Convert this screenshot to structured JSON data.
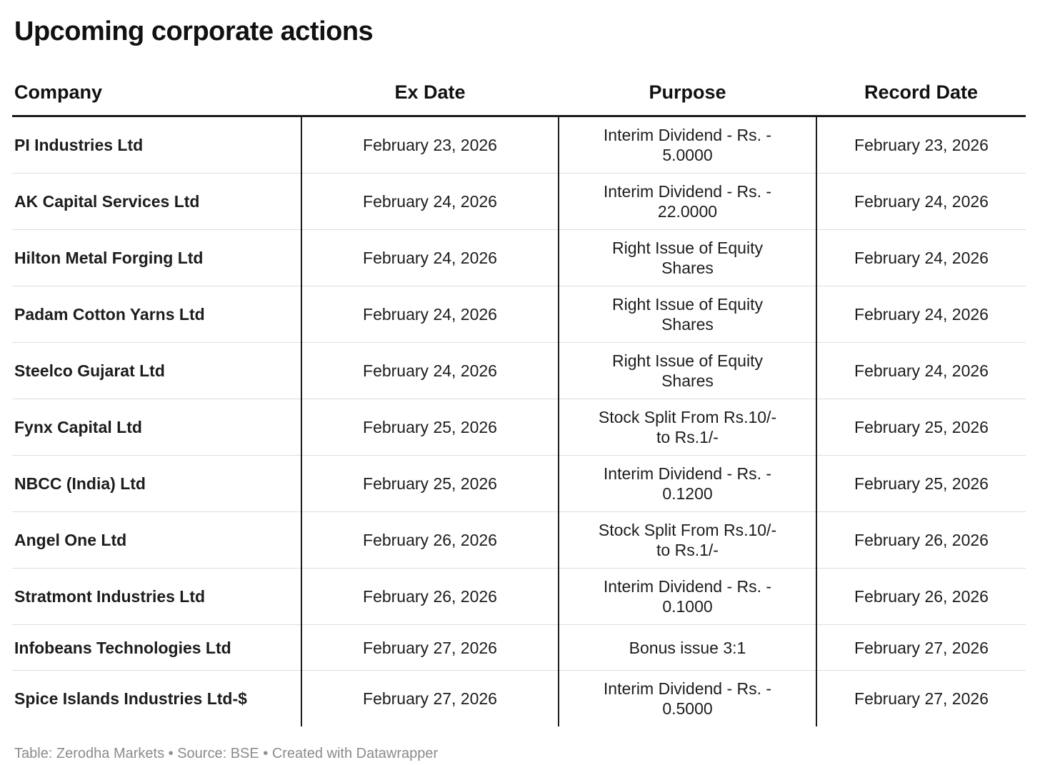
{
  "title": "Upcoming corporate actions",
  "chart_data": {
    "type": "table",
    "title": "Upcoming corporate actions",
    "columns": [
      "Company",
      "Ex Date",
      "Purpose",
      "Record Date"
    ],
    "rows": [
      [
        "PI Industries Ltd",
        "February 23, 2026",
        "Interim Dividend - Rs. -\n5.0000",
        "February 23, 2026"
      ],
      [
        "AK Capital Services Ltd",
        "February 24, 2026",
        "Interim Dividend - Rs. -\n22.0000",
        "February 24, 2026"
      ],
      [
        "Hilton Metal Forging Ltd",
        "February 24, 2026",
        "Right Issue of Equity\nShares",
        "February 24, 2026"
      ],
      [
        "Padam Cotton Yarns Ltd",
        "February 24, 2026",
        "Right Issue of Equity\nShares",
        "February 24, 2026"
      ],
      [
        "Steelco Gujarat Ltd",
        "February 24, 2026",
        "Right Issue of Equity\nShares",
        "February 24, 2026"
      ],
      [
        "Fynx Capital Ltd",
        "February 25, 2026",
        "Stock Split From Rs.10/-\nto Rs.1/-",
        "February 25, 2026"
      ],
      [
        "NBCC (India) Ltd",
        "February 25, 2026",
        "Interim Dividend - Rs. -\n0.1200",
        "February 25, 2026"
      ],
      [
        "Angel One Ltd",
        "February 26, 2026",
        "Stock Split From Rs.10/-\nto Rs.1/-",
        "February 26, 2026"
      ],
      [
        "Stratmont Industries Ltd",
        "February 26, 2026",
        "Interim Dividend - Rs. -\n0.1000",
        "February 26, 2026"
      ],
      [
        "Infobeans Technologies Ltd",
        "February 27, 2026",
        "Bonus issue 3:1",
        "February 27, 2026"
      ],
      [
        "Spice Islands Industries Ltd-$",
        "February 27, 2026",
        "Interim Dividend - Rs. -\n0.5000",
        "February 27, 2026"
      ]
    ],
    "layout": {
      "header_alignment": [
        "left",
        "center",
        "center",
        "center"
      ],
      "column_rules": "black vertical rules after Company, Ex Date and Purpose columns",
      "row_separators": "light gray horizontal lines",
      "legend": "none"
    }
  },
  "footer": {
    "text": "Table: Zerodha Markets • Source: BSE • Created with Datawrapper"
  },
  "colors": {
    "background": "#ffffff",
    "title_text": "#111111",
    "body_text": "#1d1d1d",
    "column_rule": "#1c1c1c",
    "header_underline": "#1c1c1c",
    "row_separator": "#dedede",
    "footer_text": "#8c8c8c"
  }
}
